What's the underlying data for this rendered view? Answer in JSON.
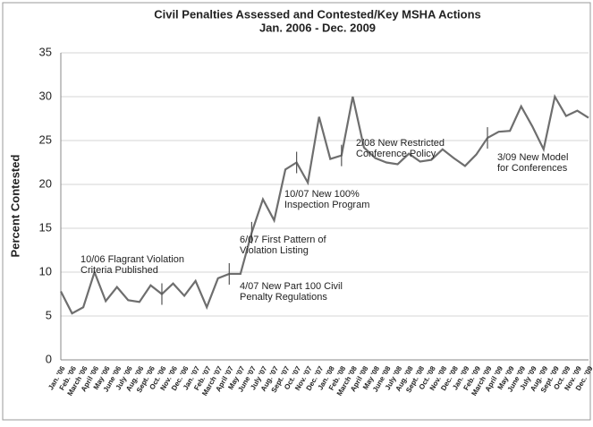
{
  "chart_data": {
    "type": "line",
    "title": [
      "Civil Penalties Assessed and Contested/Key MSHA Actions",
      "Jan. 2006 - Dec. 2009"
    ],
    "y_label": "Percent Contested",
    "categories": [
      "Jan. '06",
      "Feb. '06",
      "March '06",
      "April '06",
      "May '06",
      "June '06",
      "July '06",
      "Aug. '06",
      "Sept. '06",
      "Oct. '06",
      "Nov. '06",
      "Dec. '06",
      "Jan. '07",
      "Feb. '07",
      "March '07",
      "April '07",
      "May '07",
      "June '07",
      "July '07",
      "Aug. '07",
      "Sept. '07",
      "Oct. '07",
      "Nov. '07",
      "Dec. '07",
      "Jan. '08",
      "Feb. '08",
      "March '08",
      "April '08",
      "May '08",
      "June '08",
      "July '08",
      "Aug. '08",
      "Sept. '08",
      "Oct. '08",
      "Nov. '08",
      "Dec. '08",
      "Jan. '09",
      "Feb. '09",
      "March '09",
      "April '09",
      "May '09",
      "June '09",
      "July '09",
      "Aug. '09",
      "Sept. '09",
      "Oct. '09",
      "Nov. '09",
      "Dec. '09"
    ],
    "values": [
      7.8,
      5.3,
      6.0,
      10.0,
      6.7,
      8.3,
      6.8,
      6.6,
      8.5,
      7.5,
      8.7,
      7.3,
      9.0,
      6.0,
      9.3,
      9.8,
      9.8,
      14.5,
      18.3,
      15.9,
      21.7,
      22.5,
      20.2,
      27.7,
      22.9,
      23.3,
      30.0,
      24.2,
      23.0,
      22.5,
      22.3,
      23.5,
      22.6,
      22.8,
      24.0,
      23.0,
      22.1,
      23.4,
      25.3,
      26.0,
      26.1,
      28.9,
      26.6,
      24.0,
      30.0,
      27.8,
      28.4,
      27.6
    ],
    "color": "#6e6e6e",
    "ylim": [
      0,
      35
    ],
    "yticks": [
      0,
      5,
      10,
      15,
      20,
      25,
      30,
      35
    ],
    "grid": true,
    "annotations": [
      [
        "10/06 Flagrant Violation",
        "Criteria Published"
      ],
      [
        "4/07 New Part 100 Civil",
        "Penalty Regulations"
      ],
      [
        "6/07 First Pattern of",
        "Violation Listing"
      ],
      [
        "10/07 New 100%",
        "Inspection Program"
      ],
      [
        "2/08 New Restricted",
        "Conference Policy"
      ],
      [
        "3/09 New Model",
        "for Conferences"
      ]
    ]
  }
}
